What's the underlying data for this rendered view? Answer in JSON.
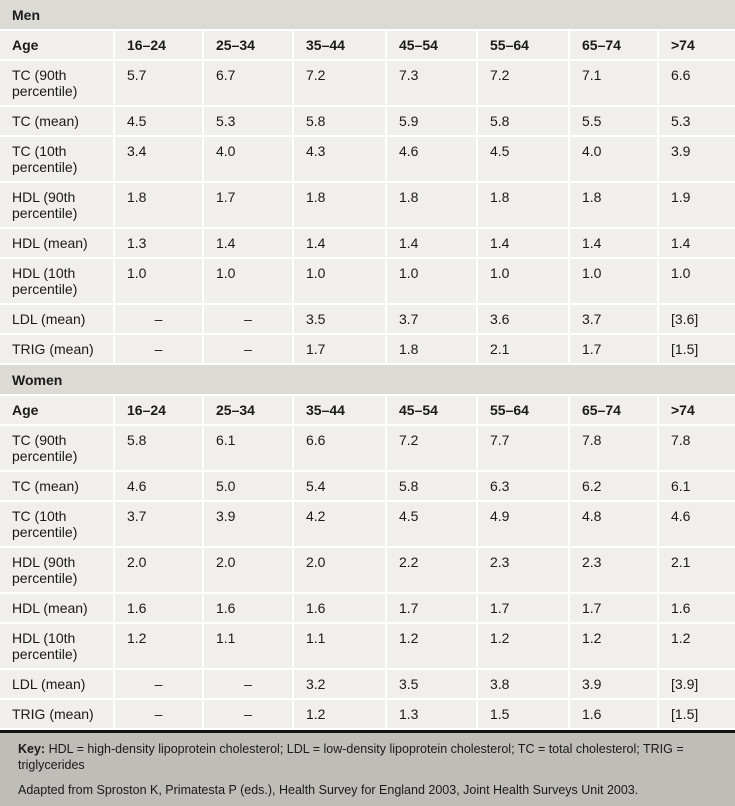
{
  "columns": [
    "Age",
    "16–24",
    "25–34",
    "35–44",
    "45–54",
    "55–64",
    "65–74",
    ">74"
  ],
  "sections": [
    {
      "title": "Men",
      "rows": [
        {
          "label": "TC (90th percentile)",
          "values": [
            "5.7",
            "6.7",
            "7.2",
            "7.3",
            "7.2",
            "7.1",
            "6.6"
          ]
        },
        {
          "label": "TC (mean)",
          "values": [
            "4.5",
            "5.3",
            "5.8",
            "5.9",
            "5.8",
            "5.5",
            "5.3"
          ]
        },
        {
          "label": "TC (10th percentile)",
          "values": [
            "3.4",
            "4.0",
            "4.3",
            "4.6",
            "4.5",
            "4.0",
            "3.9"
          ]
        },
        {
          "label": "HDL (90th percentile)",
          "values": [
            "1.8",
            "1.7",
            "1.8",
            "1.8",
            "1.8",
            "1.8",
            "1.9"
          ]
        },
        {
          "label": "HDL (mean)",
          "values": [
            "1.3",
            "1.4",
            "1.4",
            "1.4",
            "1.4",
            "1.4",
            "1.4"
          ]
        },
        {
          "label": "HDL (10th percentile)",
          "values": [
            "1.0",
            "1.0",
            "1.0",
            "1.0",
            "1.0",
            "1.0",
            "1.0"
          ]
        },
        {
          "label": "LDL (mean)",
          "values": [
            "–",
            "–",
            "3.5",
            "3.7",
            "3.6",
            "3.7",
            "[3.6]"
          ]
        },
        {
          "label": "TRIG (mean)",
          "values": [
            "–",
            "–",
            "1.7",
            "1.8",
            "2.1",
            "1.7",
            "[1.5]"
          ]
        }
      ]
    },
    {
      "title": "Women",
      "rows": [
        {
          "label": "TC (90th percentile)",
          "values": [
            "5.8",
            "6.1",
            "6.6",
            "7.2",
            "7.7",
            "7.8",
            "7.8"
          ]
        },
        {
          "label": "TC (mean)",
          "values": [
            "4.6",
            "5.0",
            "5.4",
            "5.8",
            "6.3",
            "6.2",
            "6.1"
          ]
        },
        {
          "label": "TC (10th percentile)",
          "values": [
            "3.7",
            "3.9",
            "4.2",
            "4.5",
            "4.9",
            "4.8",
            "4.6"
          ]
        },
        {
          "label": "HDL (90th percentile)",
          "values": [
            "2.0",
            "2.0",
            "2.0",
            "2.2",
            "2.3",
            "2.3",
            "2.1"
          ]
        },
        {
          "label": "HDL (mean)",
          "values": [
            "1.6",
            "1.6",
            "1.6",
            "1.7",
            "1.7",
            "1.7",
            "1.6"
          ]
        },
        {
          "label": "HDL (10th percentile)",
          "values": [
            "1.2",
            "1.1",
            "1.1",
            "1.2",
            "1.2",
            "1.2",
            "1.2"
          ]
        },
        {
          "label": "LDL (mean)",
          "values": [
            "–",
            "–",
            "3.2",
            "3.5",
            "3.8",
            "3.9",
            "[3.9]"
          ]
        },
        {
          "label": "TRIG (mean)",
          "values": [
            "–",
            "–",
            "1.2",
            "1.3",
            "1.5",
            "1.6",
            "[1.5]"
          ]
        }
      ]
    }
  ],
  "footer": {
    "key_label": "Key:",
    "key_text": " HDL = high-density lipoprotein cholesterol; LDL = low-density lipoprotein cholesterol; TC = total cholesterol; TRIG = triglycerides",
    "source": "Adapted from Sproston K, Primatesta P (eds.), Health Survey for England 2003, Joint Health Surveys Unit 2003."
  }
}
